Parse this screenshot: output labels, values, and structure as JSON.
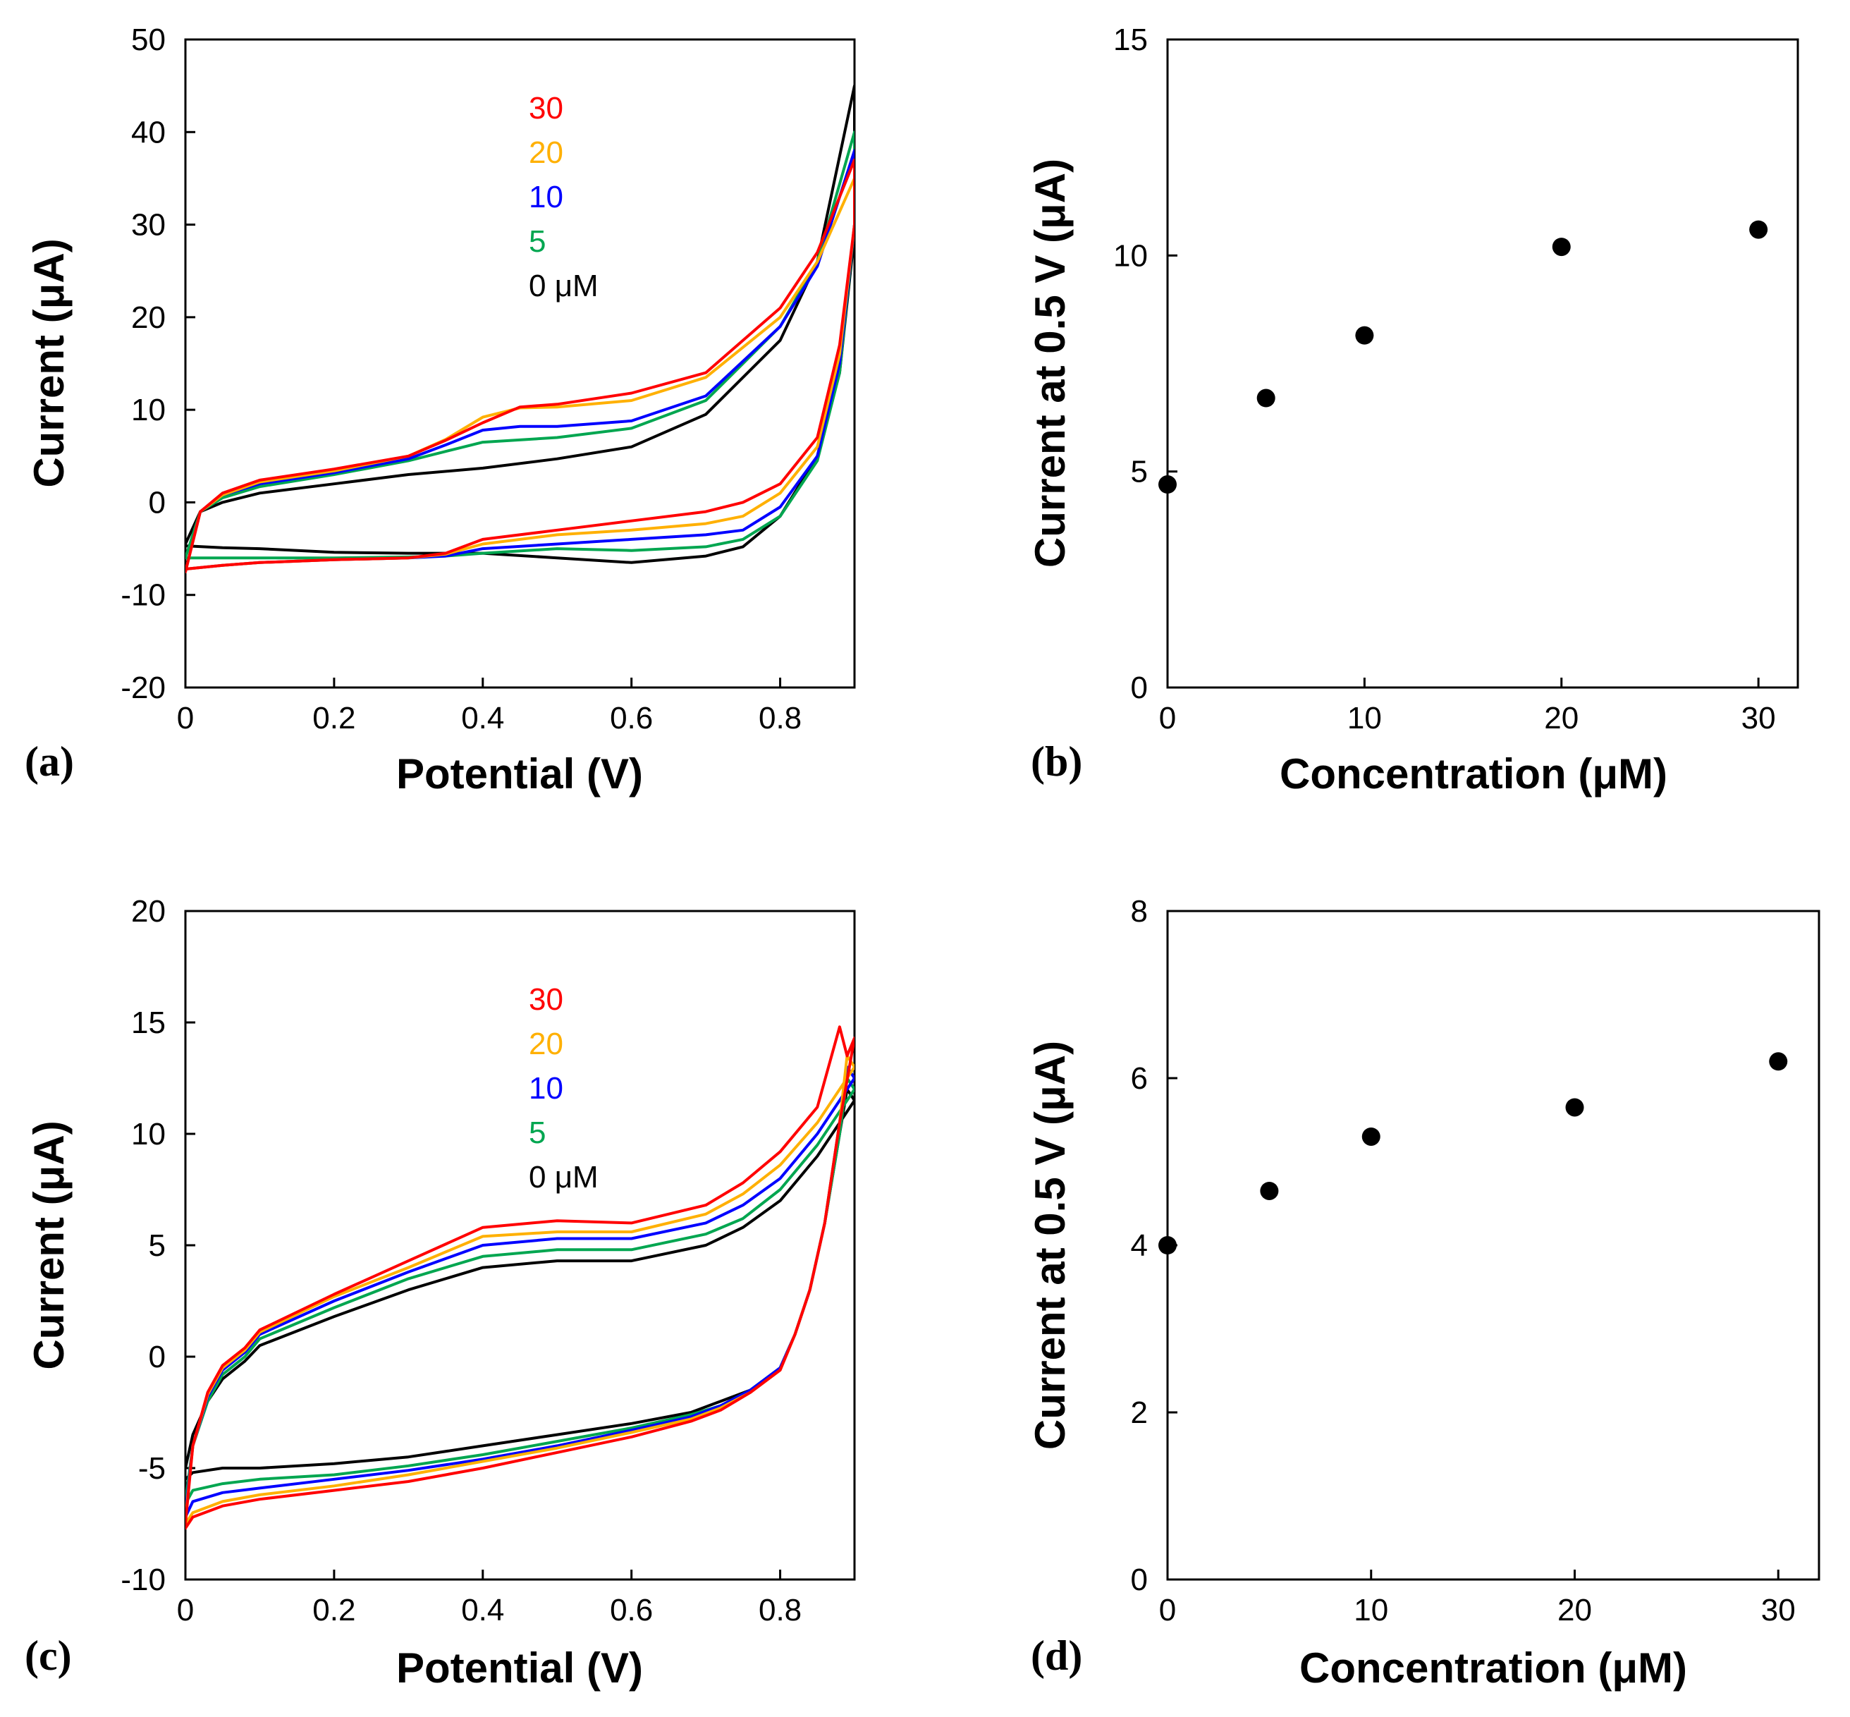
{
  "colors": {
    "c30": "#ff0000",
    "c20": "#ffb000",
    "c10": "#0000ff",
    "c5": "#00a650",
    "c0": "#000000"
  },
  "chart_data": [
    {
      "id": "a",
      "type": "line",
      "panel_label": "(a)",
      "xlabel": "Potential (V)",
      "ylabel": "Current (μA)",
      "xlim": [
        0,
        0.9
      ],
      "ylim": [
        -20,
        50
      ],
      "xticks": [
        0,
        0.2,
        0.4,
        0.6,
        0.8
      ],
      "xtick_labels": [
        "0",
        "0.2",
        "0.4",
        "0.6",
        "0.8"
      ],
      "yticks": [
        -20,
        -10,
        0,
        10,
        20,
        30,
        40,
        50
      ],
      "ytick_labels": [
        "-20",
        "-10",
        "0",
        "10",
        "20",
        "30",
        "40",
        "50"
      ],
      "legend": [
        "30",
        "20",
        "10",
        "5",
        "0 μM"
      ],
      "series": [
        {
          "name": "0 μM",
          "color": "#000000",
          "x": [
            0,
            0.02,
            0.05,
            0.1,
            0.2,
            0.3,
            0.4,
            0.5,
            0.6,
            0.7,
            0.8,
            0.85,
            0.9,
            0.9,
            0.88,
            0.85,
            0.8,
            0.75,
            0.7,
            0.6,
            0.5,
            0.4,
            0.3,
            0.2,
            0.1,
            0.05,
            0
          ],
          "y": [
            -4.5,
            -1,
            0,
            1,
            2,
            3,
            3.7,
            4.7,
            6,
            9.5,
            17.5,
            26,
            45,
            29,
            14,
            5,
            -1.5,
            -4.8,
            -5.8,
            -6.5,
            -6,
            -5.5,
            -5.5,
            -5.4,
            -5,
            -4.9,
            -4.7
          ]
        },
        {
          "name": "5",
          "color": "#00a650",
          "x": [
            0,
            0.02,
            0.05,
            0.1,
            0.2,
            0.3,
            0.35,
            0.4,
            0.5,
            0.6,
            0.7,
            0.8,
            0.85,
            0.9,
            0.9,
            0.88,
            0.85,
            0.8,
            0.75,
            0.7,
            0.6,
            0.5,
            0.4,
            0.35,
            0.3,
            0.2,
            0.1,
            0.05,
            0
          ],
          "y": [
            -6,
            -1,
            0.5,
            1.7,
            3,
            4.5,
            5.5,
            6.5,
            7,
            8,
            11,
            19,
            26,
            40,
            30,
            14,
            4.5,
            -1.5,
            -4,
            -4.8,
            -5.2,
            -5,
            -5.5,
            -5.8,
            -5.9,
            -6,
            -6,
            -6,
            -6
          ]
        },
        {
          "name": "10",
          "color": "#0000ff",
          "x": [
            0,
            0.02,
            0.05,
            0.1,
            0.2,
            0.3,
            0.35,
            0.4,
            0.45,
            0.5,
            0.6,
            0.7,
            0.8,
            0.85,
            0.9,
            0.9,
            0.88,
            0.85,
            0.8,
            0.75,
            0.7,
            0.6,
            0.5,
            0.4,
            0.35,
            0.3,
            0.2,
            0.1,
            0.05,
            0
          ],
          "y": [
            -7.5,
            -1,
            0.8,
            2,
            3.2,
            4.7,
            6.2,
            7.8,
            8.2,
            8.2,
            8.8,
            11.5,
            19,
            25.5,
            38,
            30,
            15,
            5,
            -0.5,
            -3,
            -3.5,
            -4,
            -4.5,
            -5,
            -5.8,
            -6,
            -6.2,
            -6.5,
            -6.8,
            -7.2
          ]
        },
        {
          "name": "20",
          "color": "#ffb000",
          "x": [
            0,
            0.02,
            0.05,
            0.1,
            0.2,
            0.3,
            0.35,
            0.4,
            0.45,
            0.5,
            0.6,
            0.7,
            0.8,
            0.85,
            0.9,
            0.9,
            0.88,
            0.85,
            0.8,
            0.75,
            0.7,
            0.6,
            0.5,
            0.4,
            0.35,
            0.3,
            0.2,
            0.1,
            0.05,
            0
          ],
          "y": [
            -7.5,
            -1,
            0.8,
            2.2,
            3.4,
            5,
            6.8,
            9.2,
            10.2,
            10.3,
            11,
            13.5,
            20,
            26,
            35,
            30,
            16,
            6,
            1,
            -1.5,
            -2.3,
            -3,
            -3.5,
            -4.5,
            -5.6,
            -6,
            -6.2,
            -6.5,
            -6.8,
            -7.2
          ]
        },
        {
          "name": "30",
          "color": "#ff0000",
          "x": [
            0,
            0.02,
            0.05,
            0.1,
            0.2,
            0.3,
            0.35,
            0.4,
            0.45,
            0.5,
            0.6,
            0.7,
            0.8,
            0.85,
            0.9,
            0.9,
            0.88,
            0.85,
            0.8,
            0.75,
            0.7,
            0.6,
            0.5,
            0.4,
            0.35,
            0.3,
            0.2,
            0.1,
            0.05,
            0
          ],
          "y": [
            -7.5,
            -1,
            1,
            2.4,
            3.6,
            5,
            6.7,
            8.6,
            10.3,
            10.6,
            11.8,
            14,
            21,
            27,
            37,
            30,
            17,
            7,
            2,
            0,
            -1,
            -2,
            -3,
            -4,
            -5.5,
            -6,
            -6.2,
            -6.5,
            -6.8,
            -7.2
          ]
        }
      ]
    },
    {
      "id": "b",
      "type": "scatter",
      "panel_label": "(b)",
      "xlabel": "Concentration (μM)",
      "ylabel": "Current at 0.5 V (μA)",
      "xlim": [
        0,
        32
      ],
      "ylim": [
        0,
        15
      ],
      "xticks": [
        0,
        10,
        20,
        30
      ],
      "xtick_labels": [
        "0",
        "10",
        "20",
        "30"
      ],
      "yticks": [
        0,
        5,
        10,
        15
      ],
      "ytick_labels": [
        "0",
        "5",
        "10",
        "15"
      ],
      "x": [
        0,
        5,
        10,
        20,
        30
      ],
      "y": [
        4.7,
        6.7,
        8.15,
        10.2,
        10.6
      ]
    },
    {
      "id": "c",
      "type": "line",
      "panel_label": "(c)",
      "xlabel": "Potential (V)",
      "ylabel": "Current (μA)",
      "xlim": [
        0,
        0.9
      ],
      "ylim": [
        -10,
        20
      ],
      "xticks": [
        0,
        0.2,
        0.4,
        0.6,
        0.8
      ],
      "xtick_labels": [
        "0",
        "0.2",
        "0.4",
        "0.6",
        "0.8"
      ],
      "yticks": [
        -10,
        -5,
        0,
        5,
        10,
        15,
        20
      ],
      "ytick_labels": [
        "-10",
        "-5",
        "0",
        "5",
        "10",
        "15",
        "20"
      ],
      "legend": [
        "30",
        "20",
        "10",
        "5",
        "0 μM"
      ],
      "series": [
        {
          "name": "0 μM",
          "color": "#000000",
          "x": [
            0,
            0.01,
            0.03,
            0.05,
            0.08,
            0.1,
            0.2,
            0.3,
            0.4,
            0.5,
            0.6,
            0.7,
            0.75,
            0.8,
            0.85,
            0.9,
            0.89,
            0.88,
            0.86,
            0.84,
            0.82,
            0.8,
            0.76,
            0.72,
            0.68,
            0.6,
            0.5,
            0.4,
            0.3,
            0.2,
            0.1,
            0.05,
            0.01,
            0
          ],
          "y": [
            -5,
            -3.5,
            -2,
            -1,
            -0.2,
            0.5,
            1.8,
            3,
            4,
            4.3,
            4.3,
            5,
            5.8,
            7,
            9,
            11.5,
            12,
            10,
            6,
            3,
            1,
            -0.5,
            -1.5,
            -2,
            -2.5,
            -3,
            -3.5,
            -4,
            -4.5,
            -4.8,
            -5,
            -5,
            -5.2,
            -5.5
          ]
        },
        {
          "name": "5",
          "color": "#00a650",
          "x": [
            0,
            0.01,
            0.03,
            0.05,
            0.08,
            0.1,
            0.2,
            0.3,
            0.4,
            0.5,
            0.6,
            0.7,
            0.75,
            0.8,
            0.85,
            0.9,
            0.89,
            0.88,
            0.86,
            0.84,
            0.82,
            0.8,
            0.76,
            0.72,
            0.68,
            0.6,
            0.5,
            0.4,
            0.3,
            0.2,
            0.1,
            0.05,
            0.01,
            0
          ],
          "y": [
            -6.5,
            -4,
            -2,
            -0.8,
            0,
            0.8,
            2.2,
            3.5,
            4.5,
            4.8,
            4.8,
            5.5,
            6.2,
            7.5,
            9.5,
            12,
            12.5,
            10,
            6,
            3,
            1,
            -0.5,
            -1.5,
            -2.2,
            -2.6,
            -3.2,
            -3.8,
            -4.4,
            -4.9,
            -5.3,
            -5.5,
            -5.7,
            -6,
            -6.6
          ]
        },
        {
          "name": "10",
          "color": "#0000ff",
          "x": [
            0,
            0.01,
            0.03,
            0.05,
            0.08,
            0.1,
            0.2,
            0.3,
            0.4,
            0.5,
            0.6,
            0.7,
            0.75,
            0.8,
            0.85,
            0.9,
            0.89,
            0.88,
            0.86,
            0.84,
            0.82,
            0.8,
            0.76,
            0.72,
            0.68,
            0.6,
            0.5,
            0.4,
            0.3,
            0.2,
            0.1,
            0.05,
            0.01,
            0
          ],
          "y": [
            -7,
            -4,
            -1.8,
            -0.6,
            0.2,
            1,
            2.5,
            3.8,
            5,
            5.3,
            5.3,
            6,
            6.8,
            8,
            10,
            12.5,
            13,
            10.5,
            6,
            3,
            1,
            -0.5,
            -1.5,
            -2.2,
            -2.7,
            -3.3,
            -4,
            -4.6,
            -5.1,
            -5.5,
            -5.9,
            -6.1,
            -6.5,
            -7.2
          ]
        },
        {
          "name": "20",
          "color": "#ffb000",
          "x": [
            0,
            0.01,
            0.03,
            0.05,
            0.08,
            0.1,
            0.2,
            0.3,
            0.4,
            0.5,
            0.6,
            0.7,
            0.75,
            0.8,
            0.85,
            0.9,
            0.89,
            0.88,
            0.86,
            0.84,
            0.82,
            0.8,
            0.76,
            0.72,
            0.68,
            0.6,
            0.5,
            0.4,
            0.3,
            0.2,
            0.1,
            0.05,
            0.01,
            0
          ],
          "y": [
            -7.3,
            -4,
            -1.7,
            -0.5,
            0.3,
            1.1,
            2.7,
            4,
            5.4,
            5.6,
            5.6,
            6.4,
            7.3,
            8.6,
            10.5,
            13,
            13.5,
            10.5,
            6,
            3,
            1,
            -0.6,
            -1.6,
            -2.3,
            -2.8,
            -3.4,
            -4.1,
            -4.7,
            -5.3,
            -5.8,
            -6.2,
            -6.5,
            -7,
            -7.5
          ]
        },
        {
          "name": "30",
          "color": "#ff0000",
          "x": [
            0,
            0.01,
            0.03,
            0.05,
            0.08,
            0.1,
            0.2,
            0.3,
            0.4,
            0.5,
            0.6,
            0.7,
            0.75,
            0.8,
            0.85,
            0.88,
            0.89,
            0.9,
            0.88,
            0.86,
            0.84,
            0.82,
            0.8,
            0.76,
            0.72,
            0.68,
            0.6,
            0.5,
            0.4,
            0.3,
            0.2,
            0.1,
            0.05,
            0.01,
            0
          ],
          "y": [
            -7.5,
            -4,
            -1.6,
            -0.4,
            0.4,
            1.2,
            2.8,
            4.3,
            5.8,
            6.1,
            6,
            6.8,
            7.8,
            9.2,
            11.2,
            14.8,
            13.5,
            14.3,
            10.5,
            6,
            3,
            1,
            -0.6,
            -1.6,
            -2.4,
            -2.9,
            -3.6,
            -4.3,
            -5,
            -5.6,
            -6,
            -6.4,
            -6.7,
            -7.2,
            -7.7
          ]
        }
      ]
    },
    {
      "id": "d",
      "type": "scatter",
      "panel_label": "(d)",
      "xlabel": "Concentration (μM)",
      "ylabel": "Current at 0.5 V (μA)",
      "xlim": [
        0,
        32
      ],
      "ylim": [
        0,
        8
      ],
      "xticks": [
        0,
        10,
        20,
        30
      ],
      "xtick_labels": [
        "0",
        "10",
        "20",
        "30"
      ],
      "yticks": [
        0,
        2,
        4,
        6,
        8
      ],
      "ytick_labels": [
        "0",
        "2",
        "4",
        "6",
        "8"
      ],
      "x": [
        0,
        5,
        10,
        20,
        30
      ],
      "y": [
        4.0,
        4.65,
        5.3,
        5.65,
        6.2
      ]
    }
  ]
}
